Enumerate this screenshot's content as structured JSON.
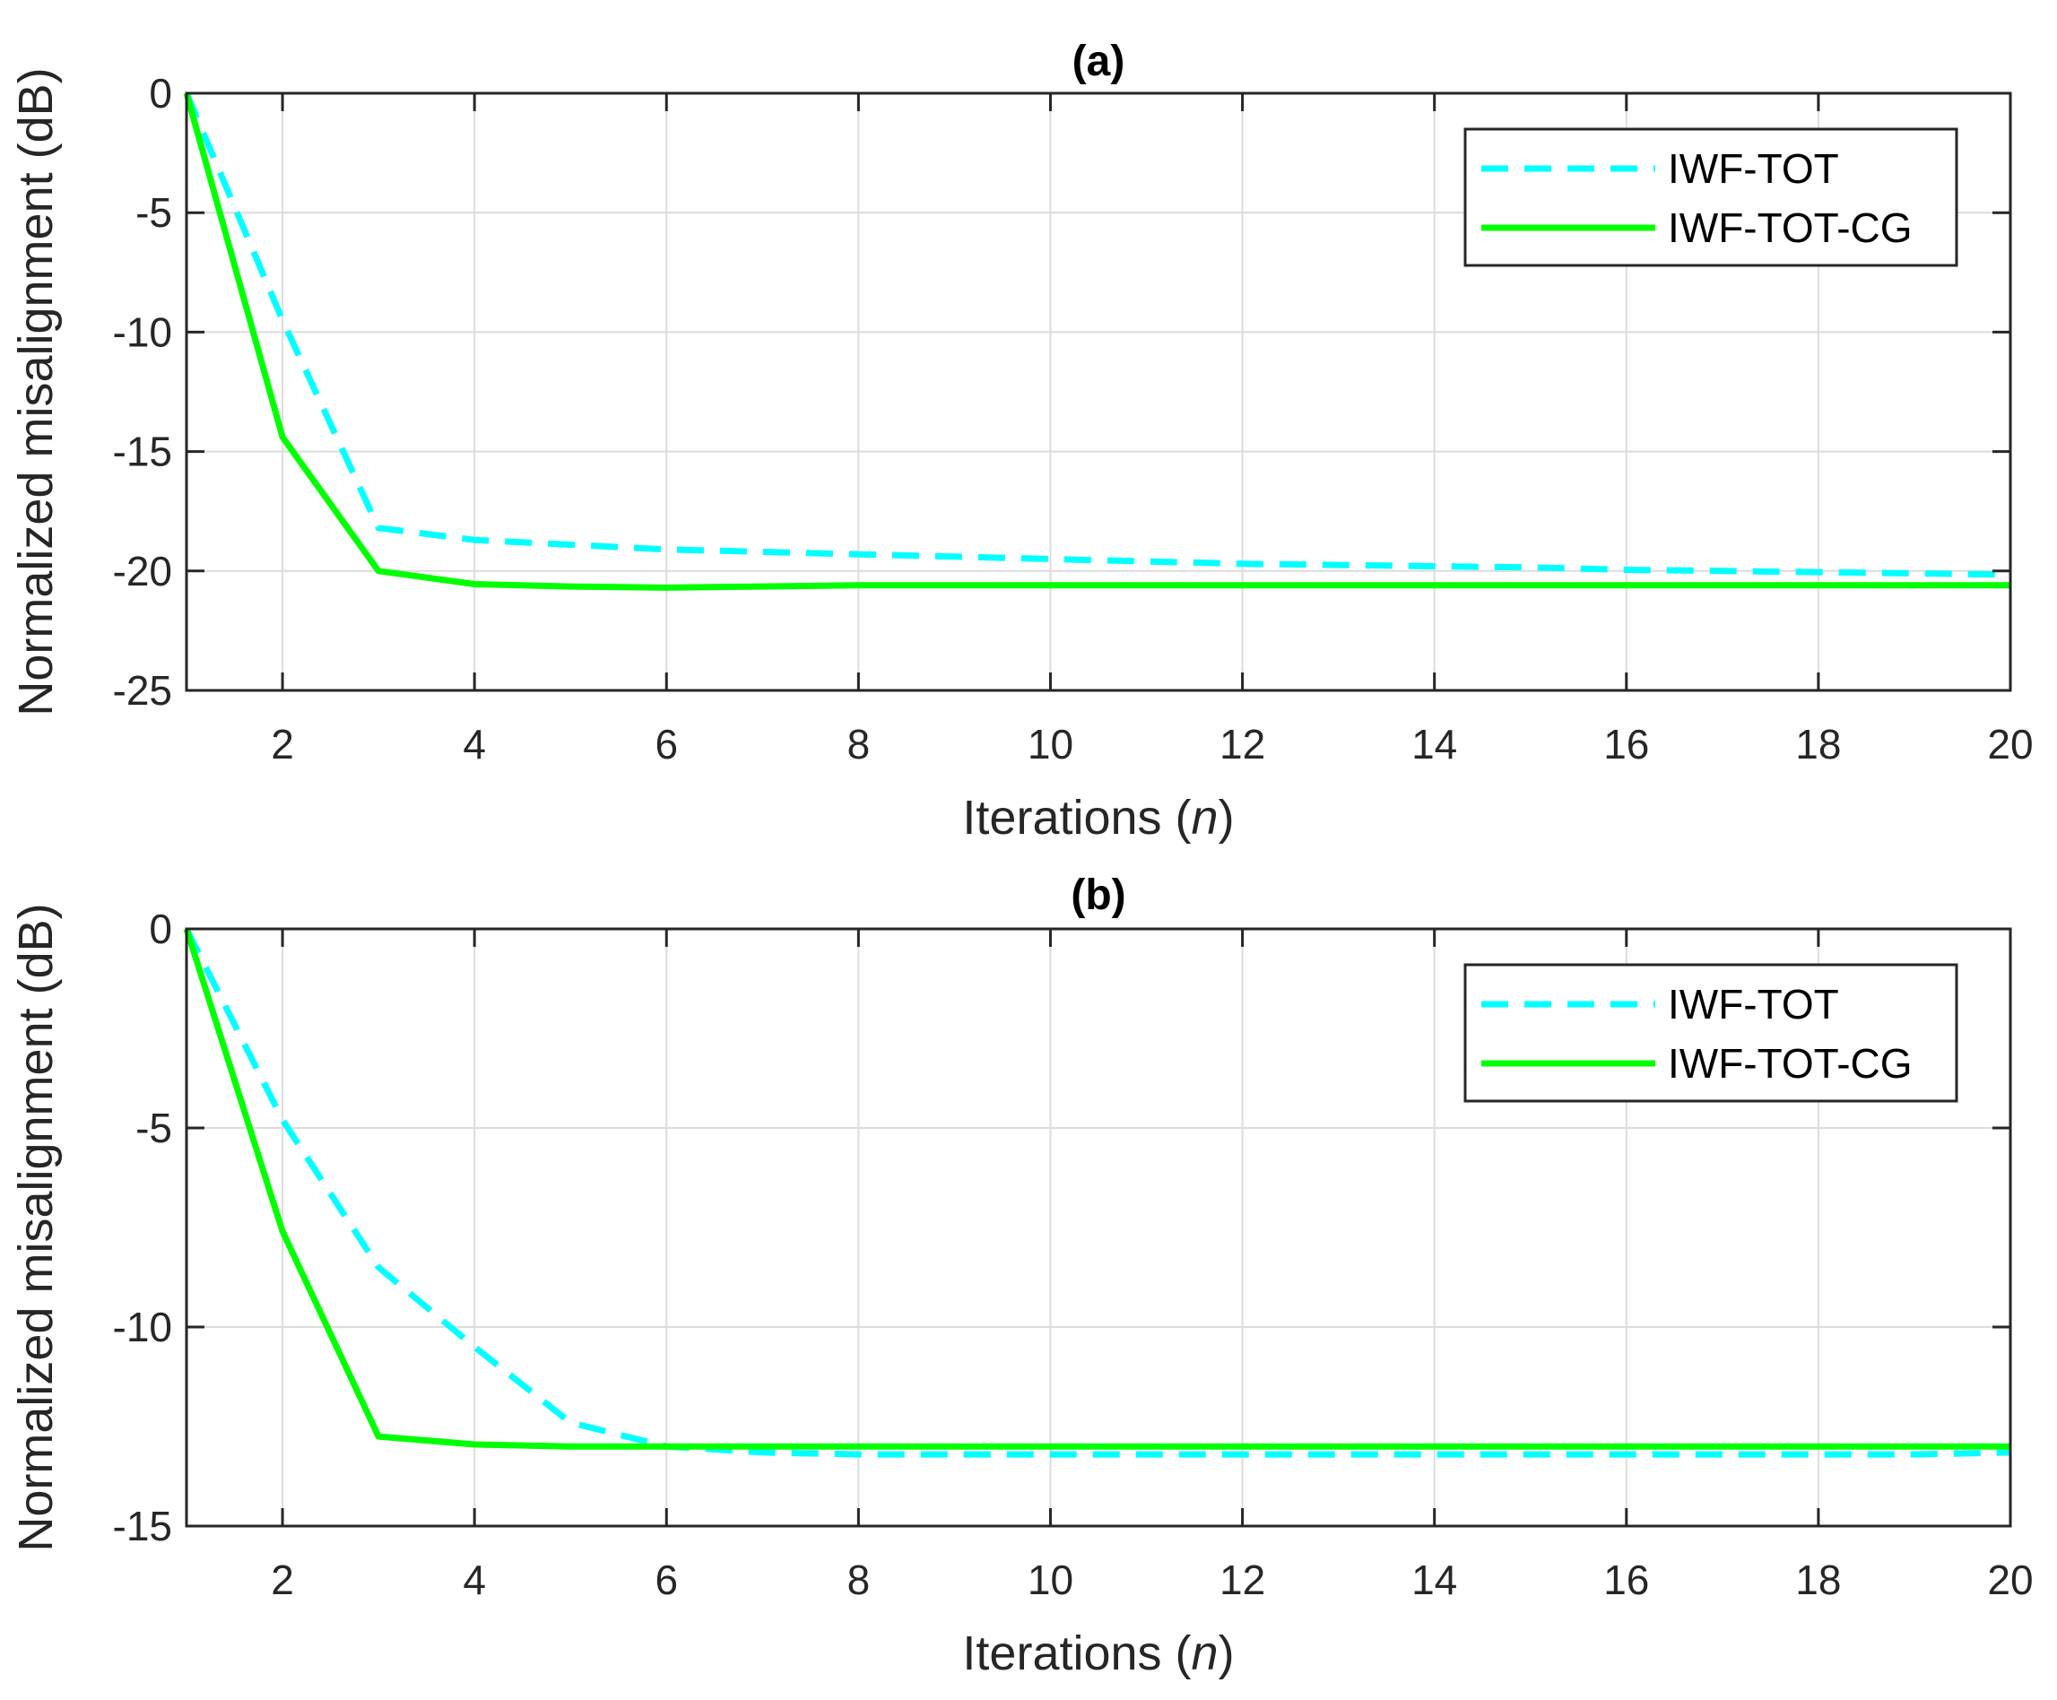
{
  "chart_data": [
    {
      "type": "line",
      "title": "(a)",
      "xlabel_prefix": "Iterations (",
      "xlabel_var": "n",
      "xlabel_suffix": ")",
      "ylabel": "Normalized misalignment (dB)",
      "xlim": [
        1,
        20
      ],
      "ylim": [
        -25,
        0
      ],
      "xticks": [
        2,
        4,
        6,
        8,
        10,
        12,
        14,
        16,
        18,
        20
      ],
      "yticks": [
        0,
        -5,
        -10,
        -15,
        -20,
        -25
      ],
      "grid": true,
      "legend_position": "top-right",
      "x": [
        1,
        2,
        3,
        4,
        5,
        6,
        7,
        8,
        9,
        10,
        11,
        12,
        13,
        14,
        15,
        16,
        17,
        18,
        19,
        20
      ],
      "series": [
        {
          "name": "IWF-TOT",
          "color": "#00ffff",
          "style": "dashed",
          "values": [
            0,
            -9.5,
            -18.2,
            -18.7,
            -18.9,
            -19.1,
            -19.2,
            -19.3,
            -19.4,
            -19.5,
            -19.6,
            -19.7,
            -19.75,
            -19.8,
            -19.85,
            -19.95,
            -20.0,
            -20.05,
            -20.1,
            -20.15
          ]
        },
        {
          "name": "IWF-TOT-CG",
          "color": "#00ff00",
          "style": "solid",
          "values": [
            0,
            -14.4,
            -20.0,
            -20.55,
            -20.65,
            -20.7,
            -20.65,
            -20.6,
            -20.6,
            -20.6,
            -20.6,
            -20.6,
            -20.6,
            -20.6,
            -20.6,
            -20.6,
            -20.6,
            -20.6,
            -20.6,
            -20.6
          ]
        }
      ]
    },
    {
      "type": "line",
      "title": "(b)",
      "xlabel_prefix": "Iterations (",
      "xlabel_var": "n",
      "xlabel_suffix": ")",
      "ylabel": "Normalized misalignment (dB)",
      "xlim": [
        1,
        20
      ],
      "ylim": [
        -15,
        0
      ],
      "xticks": [
        2,
        4,
        6,
        8,
        10,
        12,
        14,
        16,
        18,
        20
      ],
      "yticks": [
        0,
        -5,
        -10,
        -15
      ],
      "grid": true,
      "legend_position": "top-right",
      "x": [
        1,
        2,
        3,
        4,
        5,
        6,
        7,
        8,
        9,
        10,
        11,
        12,
        13,
        14,
        15,
        16,
        17,
        18,
        19,
        20
      ],
      "series": [
        {
          "name": "IWF-TOT",
          "color": "#00ffff",
          "style": "dashed",
          "values": [
            0,
            -4.8,
            -8.5,
            -10.5,
            -12.4,
            -13.0,
            -13.15,
            -13.2,
            -13.2,
            -13.2,
            -13.2,
            -13.2,
            -13.2,
            -13.2,
            -13.2,
            -13.2,
            -13.2,
            -13.2,
            -13.2,
            -13.15
          ]
        },
        {
          "name": "IWF-TOT-CG",
          "color": "#00ff00",
          "style": "solid",
          "values": [
            0,
            -7.6,
            -12.75,
            -12.95,
            -13.0,
            -13.0,
            -13.0,
            -13.0,
            -13.0,
            -13.0,
            -13.0,
            -13.0,
            -13.0,
            -13.0,
            -13.0,
            -13.0,
            -13.0,
            -13.0,
            -13.0,
            -13.0
          ]
        }
      ]
    }
  ]
}
